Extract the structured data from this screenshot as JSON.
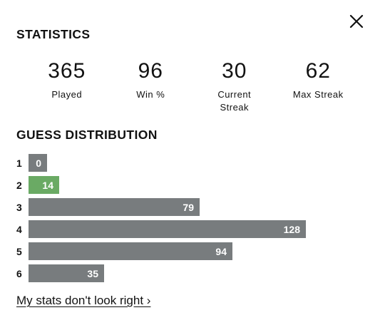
{
  "statistics": {
    "title": "STATISTICS",
    "items": [
      {
        "value": "365",
        "label": "Played"
      },
      {
        "value": "96",
        "label": "Win %"
      },
      {
        "value": "30",
        "label": "Current Streak"
      },
      {
        "value": "62",
        "label": "Max Streak"
      }
    ]
  },
  "distribution": {
    "title": "GUESS DISTRIBUTION",
    "rows": [
      {
        "guess": "1",
        "count": 0,
        "highlight": false
      },
      {
        "guess": "2",
        "count": 14,
        "highlight": true
      },
      {
        "guess": "3",
        "count": 79,
        "highlight": false
      },
      {
        "guess": "4",
        "count": 128,
        "highlight": false
      },
      {
        "guess": "5",
        "count": 94,
        "highlight": false
      },
      {
        "guess": "6",
        "count": 35,
        "highlight": false
      }
    ],
    "colors": {
      "default": "#787c7e",
      "highlight": "#6aaa64"
    }
  },
  "footer": {
    "link_label": "My stats don't look right ›"
  },
  "icons": {
    "close": "close-icon"
  }
}
